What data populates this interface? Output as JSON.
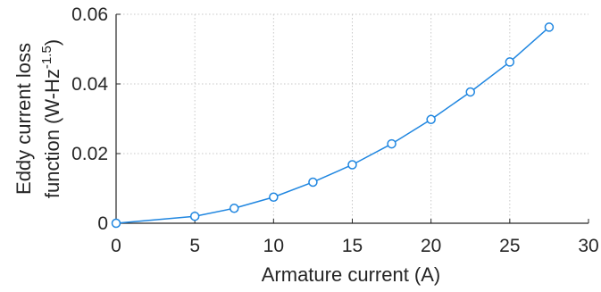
{
  "chart_data": {
    "type": "line",
    "title": "",
    "xlabel": "Armature current (A)",
    "ylabel_line1": "Eddy current loss",
    "ylabel_line2_prefix": "function (W-Hz",
    "ylabel_line2_sup": "-1.5",
    "ylabel_line2_suffix": ")",
    "xlim": [
      0,
      30
    ],
    "ylim": [
      0,
      0.06
    ],
    "xticks": [
      0,
      5,
      10,
      15,
      20,
      25,
      30
    ],
    "xtick_labels": [
      "0",
      "5",
      "10",
      "15",
      "20",
      "25",
      "30"
    ],
    "yticks": [
      0,
      0.02,
      0.04,
      0.06
    ],
    "ytick_labels": [
      "0",
      "0.02",
      "0.04",
      "0.06"
    ],
    "grid": true,
    "line_color": "#1f86e0",
    "marker": "open-circle",
    "series": [
      {
        "x": [
          0,
          5,
          7.5,
          10,
          12.5,
          15,
          17.5,
          20,
          22.5,
          25,
          27.5
        ],
        "values": [
          0.0,
          0.002,
          0.0043,
          0.0075,
          0.0118,
          0.0168,
          0.0228,
          0.0298,
          0.0377,
          0.0463,
          0.0563
        ]
      }
    ]
  }
}
